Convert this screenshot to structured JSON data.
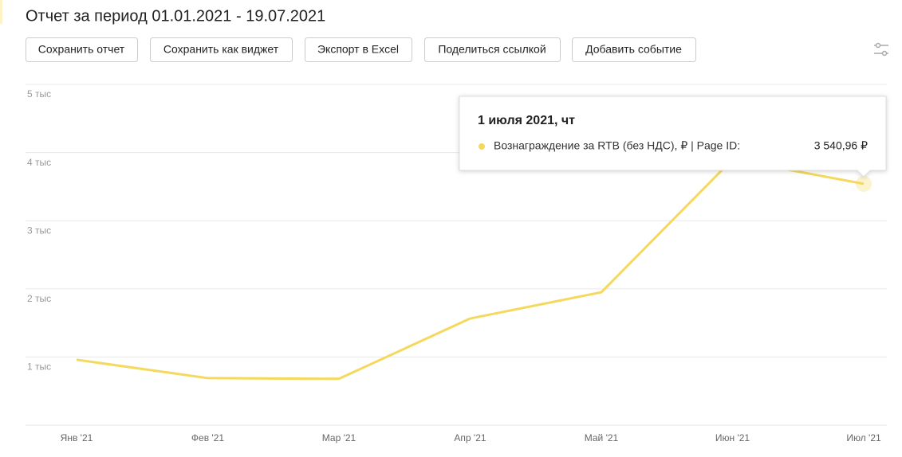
{
  "header": {
    "title": "Отчет за период 01.01.2021 - 19.07.2021"
  },
  "buttons": [
    "Сохранить отчет",
    "Сохранить как виджет",
    "Экспорт в Excel",
    "Поделиться ссылкой",
    "Добавить событие"
  ],
  "chart_data": {
    "type": "line",
    "categories": [
      "Янв '21",
      "Фев '21",
      "Мар '21",
      "Апр '21",
      "Май '21",
      "Июн '21",
      "Июл '21"
    ],
    "series": [
      {
        "name": "Вознаграждение за RTB (без НДС), ₽ | Page ID:",
        "color": "#f5d95f",
        "values": [
          960,
          690,
          680,
          1565,
          1950,
          3900,
          3540.96
        ],
        "value_labels": [
          null,
          null,
          null,
          null,
          null,
          null,
          "3 540,96 ₽"
        ]
      }
    ],
    "ylim": [
      0,
      5000
    ],
    "yticks": [
      {
        "value": 1000,
        "label": "1 тыс"
      },
      {
        "value": 2000,
        "label": "2 тыс"
      },
      {
        "value": 3000,
        "label": "3 тыс"
      },
      {
        "value": 4000,
        "label": "4 тыс"
      },
      {
        "value": 5000,
        "label": "5 тыс"
      }
    ],
    "grid": true,
    "tooltip": {
      "title": "1 июля 2021, чт"
    }
  }
}
